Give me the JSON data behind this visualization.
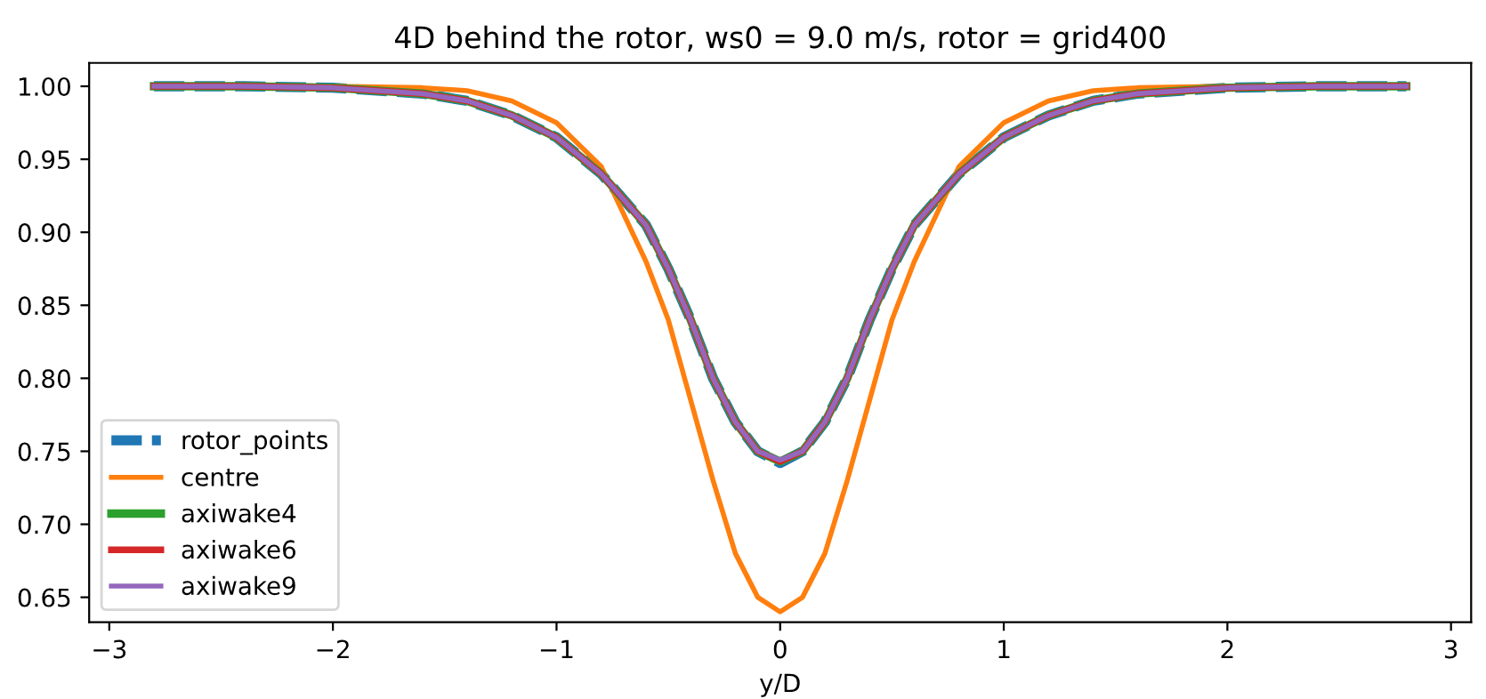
{
  "chart_data": {
    "type": "line",
    "title": "4D behind the rotor, ws0 = 9.0 m/s, rotor = grid400",
    "xlabel": "y/D",
    "x": [
      -2.8,
      -2.4,
      -2.0,
      -1.6,
      -1.4,
      -1.2,
      -1.0,
      -0.8,
      -0.6,
      -0.5,
      -0.4,
      -0.3,
      -0.2,
      -0.1,
      0,
      0.1,
      0.2,
      0.3,
      0.4,
      0.5,
      0.6,
      0.8,
      1.0,
      1.2,
      1.4,
      1.6,
      2.0,
      2.4,
      2.8
    ],
    "series": [
      {
        "name": "rotor_points",
        "color": "#1f77b4",
        "line_style": "dashed",
        "values": [
          1.0,
          1.0,
          0.999,
          0.995,
          0.99,
          0.98,
          0.965,
          0.94,
          0.905,
          0.875,
          0.84,
          0.8,
          0.77,
          0.75,
          0.742,
          0.75,
          0.77,
          0.8,
          0.84,
          0.875,
          0.905,
          0.94,
          0.965,
          0.98,
          0.99,
          0.995,
          0.999,
          1.0,
          1.0
        ]
      },
      {
        "name": "centre",
        "color": "#ff7f0e",
        "values": [
          1.0,
          1.0,
          1.0,
          0.999,
          0.997,
          0.99,
          0.975,
          0.945,
          0.88,
          0.84,
          0.785,
          0.73,
          0.68,
          0.65,
          0.64,
          0.65,
          0.68,
          0.73,
          0.785,
          0.84,
          0.88,
          0.945,
          0.975,
          0.99,
          0.997,
          0.999,
          1.0,
          1.0,
          1.0
        ]
      },
      {
        "name": "axiwake4",
        "color": "#2ca02c",
        "values": [
          1.0,
          1.0,
          0.999,
          0.995,
          0.99,
          0.98,
          0.965,
          0.94,
          0.905,
          0.875,
          0.84,
          0.8,
          0.77,
          0.75,
          0.743,
          0.75,
          0.77,
          0.8,
          0.84,
          0.875,
          0.905,
          0.94,
          0.965,
          0.98,
          0.99,
          0.995,
          0.999,
          1.0,
          1.0
        ]
      },
      {
        "name": "axiwake6",
        "color": "#d62728",
        "values": [
          1.0,
          1.0,
          0.999,
          0.995,
          0.99,
          0.98,
          0.965,
          0.94,
          0.905,
          0.875,
          0.84,
          0.8,
          0.77,
          0.75,
          0.743,
          0.75,
          0.77,
          0.8,
          0.84,
          0.875,
          0.905,
          0.94,
          0.965,
          0.98,
          0.99,
          0.995,
          0.999,
          1.0,
          1.0
        ]
      },
      {
        "name": "axiwake9",
        "color": "#9467bd",
        "values": [
          1.0,
          1.0,
          0.999,
          0.995,
          0.99,
          0.98,
          0.965,
          0.94,
          0.905,
          0.875,
          0.84,
          0.8,
          0.77,
          0.75,
          0.744,
          0.75,
          0.77,
          0.8,
          0.84,
          0.875,
          0.905,
          0.94,
          0.965,
          0.98,
          0.99,
          0.995,
          0.999,
          1.0,
          1.0
        ]
      }
    ],
    "xlim": [
      -3.09,
      3.09
    ],
    "xticks": [
      {
        "value": -3,
        "label": "−3"
      },
      {
        "value": -2,
        "label": "−2"
      },
      {
        "value": -1,
        "label": "−1"
      },
      0,
      1,
      2,
      3
    ],
    "ylim": [
      0.633,
      1.016
    ],
    "yticks": [
      {
        "value": 0.65,
        "label": "0.65"
      },
      {
        "value": 0.7,
        "label": "0.70"
      },
      {
        "value": 0.75,
        "label": "0.75"
      },
      {
        "value": 0.8,
        "label": "0.80"
      },
      {
        "value": 0.85,
        "label": "0.85"
      },
      {
        "value": 0.9,
        "label": "0.90"
      },
      {
        "value": 0.95,
        "label": "0.95"
      },
      {
        "value": 1.0,
        "label": "1.00"
      }
    ],
    "legend": "lower left",
    "grid": false
  }
}
